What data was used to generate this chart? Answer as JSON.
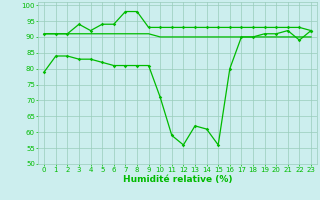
{
  "line1_x": [
    0,
    1,
    2,
    3,
    4,
    5,
    6,
    7,
    8,
    9,
    10,
    11,
    12,
    13,
    14,
    15,
    16,
    17,
    18,
    19,
    20,
    21,
    22,
    23
  ],
  "line1_y": [
    79,
    84,
    84,
    83,
    83,
    82,
    81,
    81,
    81,
    81,
    71,
    59,
    56,
    62,
    61,
    56,
    80,
    90,
    90,
    91,
    91,
    92,
    89,
    92
  ],
  "line2_x": [
    0,
    1,
    2,
    3,
    4,
    5,
    6,
    7,
    8,
    9,
    10,
    11,
    12,
    13,
    14,
    15,
    16,
    17,
    18,
    19,
    20,
    21,
    22,
    23
  ],
  "line2_y": [
    91,
    91,
    91,
    94,
    92,
    94,
    94,
    98,
    98,
    93,
    93,
    93,
    93,
    93,
    93,
    93,
    93,
    93,
    93,
    93,
    93,
    93,
    93,
    92
  ],
  "line3_x": [
    0,
    1,
    2,
    3,
    4,
    5,
    6,
    7,
    8,
    9,
    10,
    11,
    12,
    13,
    14,
    15,
    16,
    17,
    18,
    19,
    20,
    21,
    22,
    23
  ],
  "line3_y": [
    91,
    91,
    91,
    91,
    91,
    91,
    91,
    91,
    91,
    91,
    90,
    90,
    90,
    90,
    90,
    90,
    90,
    90,
    90,
    90,
    90,
    90,
    90,
    90
  ],
  "line_color": "#00bb00",
  "bg_color": "#cceeee",
  "grid_color": "#99ccbb",
  "xlabel": "Humidité relative (%)",
  "ylim": [
    50,
    101
  ],
  "xlim": [
    -0.5,
    23.5
  ],
  "yticks": [
    50,
    55,
    60,
    65,
    70,
    75,
    80,
    85,
    90,
    95,
    100
  ],
  "xticks": [
    0,
    1,
    2,
    3,
    4,
    5,
    6,
    7,
    8,
    9,
    10,
    11,
    12,
    13,
    14,
    15,
    16,
    17,
    18,
    19,
    20,
    21,
    22,
    23
  ]
}
